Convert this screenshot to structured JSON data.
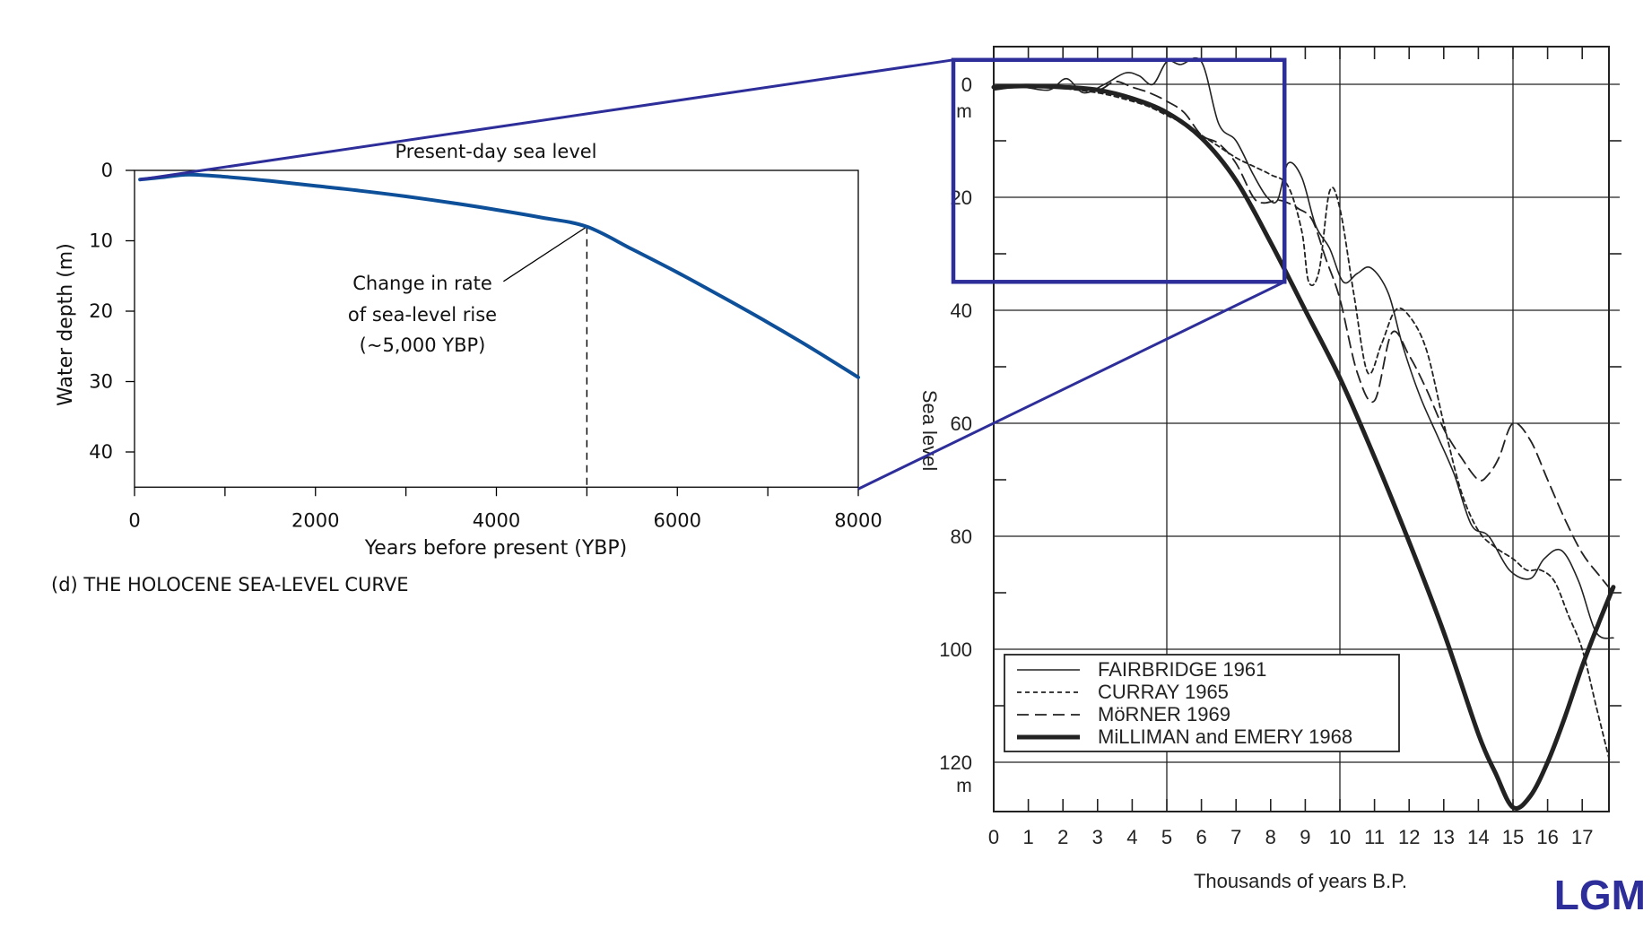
{
  "chart_data": [
    {
      "type": "line",
      "title": "(d) THE HOLOCENE SEA-LEVEL CURVE",
      "xlabel": "Years before present (YBP)",
      "ylabel": "Water depth (m)",
      "xlim": [
        0,
        8000
      ],
      "ylim": [
        0,
        45
      ],
      "y_inverted": true,
      "xticks": [
        "0",
        "2000",
        "4000",
        "6000",
        "8000"
      ],
      "yticks": [
        "0",
        "10",
        "20",
        "30",
        "40"
      ],
      "grid": false,
      "series": [
        {
          "x": [
            60,
            300,
            600,
            1000,
            1500,
            2000,
            2500,
            3000,
            3500,
            4000,
            4500,
            5000,
            5500,
            6000,
            6500,
            7000,
            7500,
            8000
          ],
          "y": [
            1.3,
            1.0,
            0.6,
            0.9,
            1.5,
            2.2,
            2.9,
            3.7,
            4.6,
            5.6,
            6.7,
            8.0,
            11.2,
            14.5,
            18.0,
            21.6,
            25.4,
            29.4
          ]
        }
      ],
      "annotations": {
        "present_day": "Present-day sea level",
        "rate_change": [
          "Change in rate",
          "of sea-level rise",
          "(~5,000 YBP)"
        ],
        "rate_change_x": 5000,
        "rate_change_y": 8.0
      },
      "line_color": "#0d4f99"
    },
    {
      "type": "line",
      "xlabel": "Thousands of years B.P.",
      "ylabel": "Sea level",
      "xlim": [
        0,
        17.9
      ],
      "ylim": [
        -4,
        130
      ],
      "y_inverted": true,
      "xticks": [
        "0",
        "1",
        "2",
        "3",
        "4",
        "5",
        "6",
        "7",
        "8",
        "9",
        "10",
        "11",
        "12",
        "13",
        "14",
        "15",
        "16",
        "17"
      ],
      "yticks": [
        "0",
        "20",
        "40",
        "60",
        "80",
        "100",
        "120"
      ],
      "y_unit": "m",
      "grid": true,
      "legend_position": "bottom-left",
      "series": [
        {
          "name": "FAIRBRIDGE 1961",
          "style": "solid-thin",
          "x": [
            0,
            0.8,
            1.6,
            2.1,
            2.6,
            3.2,
            3.8,
            4.2,
            4.6,
            5.0,
            5.4,
            6.0,
            6.5,
            7.0,
            7.5,
            7.9,
            8.2,
            8.5,
            8.9,
            9.3,
            9.7,
            10.1,
            10.5,
            10.9,
            11.4,
            11.8,
            12.3,
            12.8,
            13.3,
            13.8,
            14.3,
            14.9,
            15.5,
            15.9,
            16.4,
            16.9,
            17.4,
            17.9
          ],
          "y": [
            1,
            0.5,
            1.0,
            -1.0,
            1.5,
            0,
            -2.0,
            -1.5,
            0,
            -4.0,
            -3.5,
            -4.0,
            7.0,
            10.0,
            16.0,
            20.0,
            20.5,
            14.0,
            16.5,
            25.0,
            29.0,
            35.0,
            33.5,
            32.5,
            37.0,
            46.0,
            55.0,
            62.0,
            69.0,
            78.0,
            80.0,
            86.0,
            87.5,
            84.0,
            82.5,
            88.0,
            97.0,
            98.0
          ]
        },
        {
          "name": "CURRAY 1965",
          "style": "dashed-fine",
          "x": [
            0,
            1.5,
            3.0,
            4.0,
            4.5,
            5.0,
            5.5,
            6.0,
            6.5,
            7.0,
            7.5,
            8.0,
            8.5,
            8.9,
            9.1,
            9.4,
            9.7,
            10.0,
            10.4,
            10.8,
            11.2,
            11.6,
            12.0,
            12.5,
            13.0,
            13.5,
            14.0,
            14.5,
            15.0,
            15.4,
            15.8,
            16.2,
            16.6,
            17.0,
            17.4,
            17.8
          ],
          "y": [
            0.5,
            0.5,
            1.5,
            3.0,
            4.0,
            5.5,
            7.0,
            9.0,
            11.0,
            13.0,
            14.5,
            16.0,
            18.0,
            26.0,
            35.0,
            33.0,
            19.0,
            22.0,
            37.0,
            51.0,
            46.0,
            40.0,
            41.0,
            47.0,
            60.0,
            72.0,
            79.0,
            82.0,
            84.0,
            86.0,
            86.0,
            88.0,
            94.0,
            100.0,
            110.0,
            120.0
          ]
        },
        {
          "name": "MöRNER 1969",
          "style": "dashed-long",
          "x": [
            0,
            2.0,
            3.0,
            3.5,
            4.0,
            4.5,
            5.0,
            5.5,
            6.0,
            6.5,
            7.0,
            7.5,
            7.8,
            8.2,
            8.5,
            8.8,
            9.2,
            9.6,
            10.0,
            10.5,
            11.0,
            11.5,
            12.0,
            12.5,
            13.0,
            13.5,
            14.0,
            14.3,
            14.6,
            15.0,
            15.5,
            16.0,
            16.5,
            17.0,
            17.5,
            17.9
          ],
          "y": [
            0.5,
            0.5,
            1.0,
            -0.5,
            0.5,
            1.5,
            3.0,
            5.0,
            9.0,
            10.5,
            14.0,
            20.0,
            21.0,
            20.5,
            21.0,
            22.0,
            24.0,
            31.0,
            38.0,
            51.0,
            56.0,
            44.0,
            48.0,
            54.0,
            61.0,
            66.0,
            70.0,
            69.0,
            66.0,
            60.0,
            63.0,
            70.0,
            77.0,
            83.0,
            87.0,
            90.0
          ]
        },
        {
          "name": "MiLLIMAN and EMERY 1968",
          "style": "solid-thick",
          "x": [
            0,
            1.0,
            2.0,
            3.0,
            4.0,
            5.0,
            6.0,
            7.0,
            8.0,
            9.0,
            10.0,
            11.0,
            12.0,
            13.0,
            14.0,
            14.5,
            15.0,
            15.5,
            16.0,
            16.5,
            17.0,
            17.5,
            17.9
          ],
          "y": [
            0.5,
            0.3,
            0.5,
            1.0,
            2.5,
            5.0,
            9.5,
            17.0,
            28.0,
            40.0,
            52.0,
            66.0,
            81.0,
            97.0,
            115.0,
            122.0,
            128.0,
            126.0,
            120.0,
            112.0,
            103.0,
            95.0,
            89.0
          ]
        }
      ],
      "highlight_box": {
        "x": [
          0,
          8.4
        ],
        "y": [
          -4,
          31
        ]
      },
      "corner_label": "LGM",
      "accent_color": "#2e2e9a"
    }
  ]
}
